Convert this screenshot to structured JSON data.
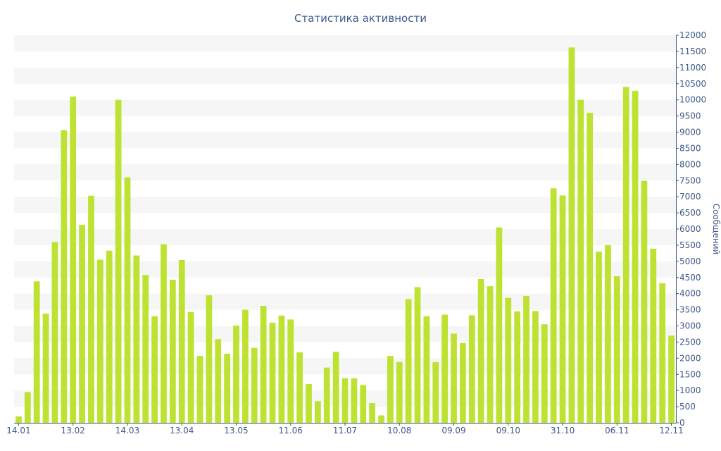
{
  "chart_data": {
    "type": "bar",
    "title": "Статистика активности",
    "xlabel": "",
    "ylabel": "Сообщений",
    "ylim": [
      0,
      12000
    ],
    "yticks": [
      0,
      500,
      1000,
      1500,
      2000,
      2500,
      3000,
      3500,
      4000,
      4500,
      5000,
      5500,
      6000,
      6500,
      7000,
      7500,
      8000,
      8500,
      9000,
      9500,
      10000,
      10500,
      11000,
      11500,
      12000
    ],
    "ytick_labels": [
      "0",
      "500",
      "1000",
      "1500",
      "2000",
      "2500",
      "3000",
      "3500",
      "4000",
      "4500",
      "5000",
      "5500",
      "6000",
      "6500",
      "7000",
      "7500",
      "8000",
      "8500",
      "9000",
      "9500",
      "10000",
      "10500",
      "11000",
      "11500",
      "12000"
    ],
    "xtick_labels": [
      "14.01",
      "13.02",
      "14.03",
      "13.04",
      "13.05",
      "11.06",
      "11.07",
      "10.08",
      "09.09",
      "09.10",
      "31.10",
      "06.11",
      "12.11"
    ],
    "xtick_positions": [
      0,
      6,
      12,
      18,
      24,
      30,
      36,
      42,
      48,
      54,
      60,
      66,
      72
    ],
    "y_axis_position": "right",
    "grid": "horizontal bands",
    "bar_color": "#bde232",
    "band_color": "#f6f6f6",
    "series": [
      {
        "values": [
          200,
          950,
          4380,
          3380,
          5600,
          9060,
          10100,
          6130,
          7030,
          5050,
          5330,
          10000,
          7600,
          5180,
          4580,
          3300,
          5530,
          4430,
          5040,
          3430,
          2070,
          3950,
          2590,
          2140,
          3010,
          3500,
          2320,
          3620,
          3100,
          3320,
          3200,
          2180,
          1200,
          670,
          1710,
          2200,
          1380,
          1380,
          1170,
          610,
          230,
          2070,
          1880,
          3830,
          4200,
          3300,
          1880,
          3350,
          2760,
          2470,
          3330,
          4450,
          4230,
          6050,
          3870,
          3450,
          3930,
          3460,
          3050,
          7260,
          7040,
          11620,
          10000,
          9600,
          5300,
          5500,
          4540,
          10400,
          10280,
          7490,
          5390,
          4320,
          2700
        ]
      }
    ]
  }
}
